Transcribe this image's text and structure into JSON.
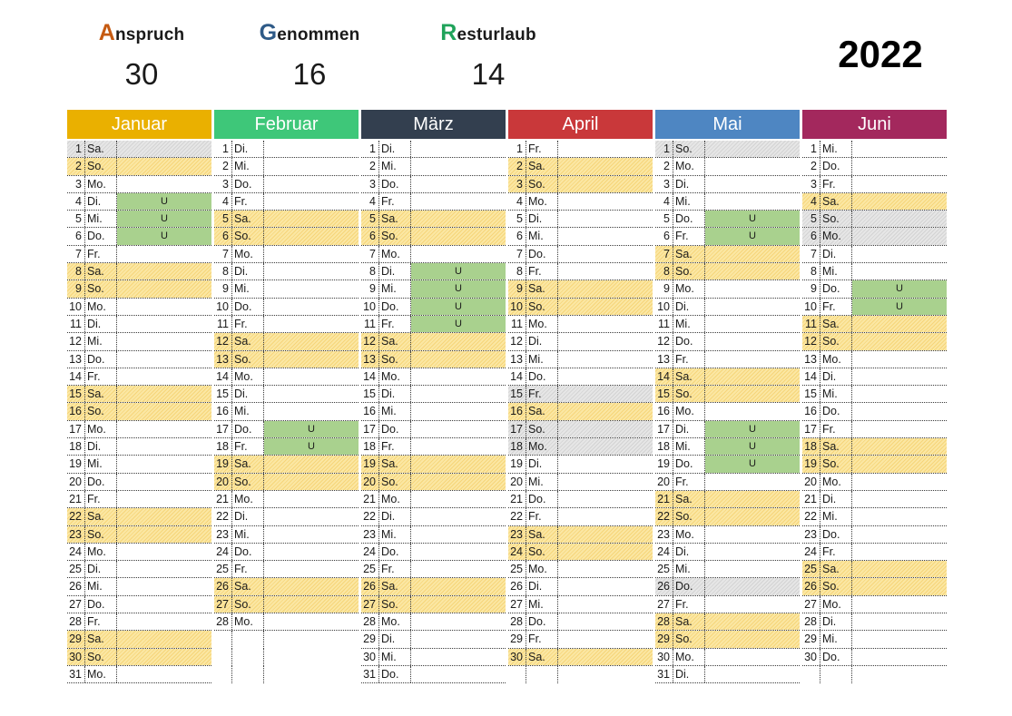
{
  "stats": {
    "anspruch": {
      "first": "A",
      "rest": "nspruch",
      "value": "30",
      "color": "#c55a11"
    },
    "genommen": {
      "first": "G",
      "rest": "enommen",
      "value": "16",
      "color": "#2e5a87"
    },
    "resturlaub": {
      "first": "R",
      "rest": "esturlaub",
      "value": "14",
      "color": "#1fa35a"
    }
  },
  "year": "2022",
  "legend_mark": "U",
  "months": [
    {
      "name": "Januar",
      "color": "#eab000",
      "start": 6,
      "days": 31,
      "holidays": [
        1
      ],
      "vacation": [
        4,
        5,
        6
      ]
    },
    {
      "name": "Februar",
      "color": "#3ec779",
      "start": 2,
      "days": 28,
      "holidays": [],
      "vacation": [
        17,
        18
      ]
    },
    {
      "name": "März",
      "color": "#333f4f",
      "start": 2,
      "days": 31,
      "holidays": [],
      "vacation": [
        8,
        9,
        10,
        11
      ]
    },
    {
      "name": "April",
      "color": "#c9383a",
      "start": 5,
      "days": 30,
      "holidays": [
        15,
        17,
        18
      ],
      "vacation": []
    },
    {
      "name": "Mai",
      "color": "#4e86c2",
      "start": 0,
      "days": 31,
      "holidays": [
        1,
        26
      ],
      "vacation": [
        5,
        6,
        17,
        18,
        19
      ]
    },
    {
      "name": "Juni",
      "color": "#a3285d",
      "start": 3,
      "days": 30,
      "holidays": [
        5,
        6
      ],
      "vacation": [
        9,
        10
      ]
    }
  ],
  "weekdays": [
    "So.",
    "Mo.",
    "Di.",
    "Mi.",
    "Do.",
    "Fr.",
    "Sa."
  ]
}
